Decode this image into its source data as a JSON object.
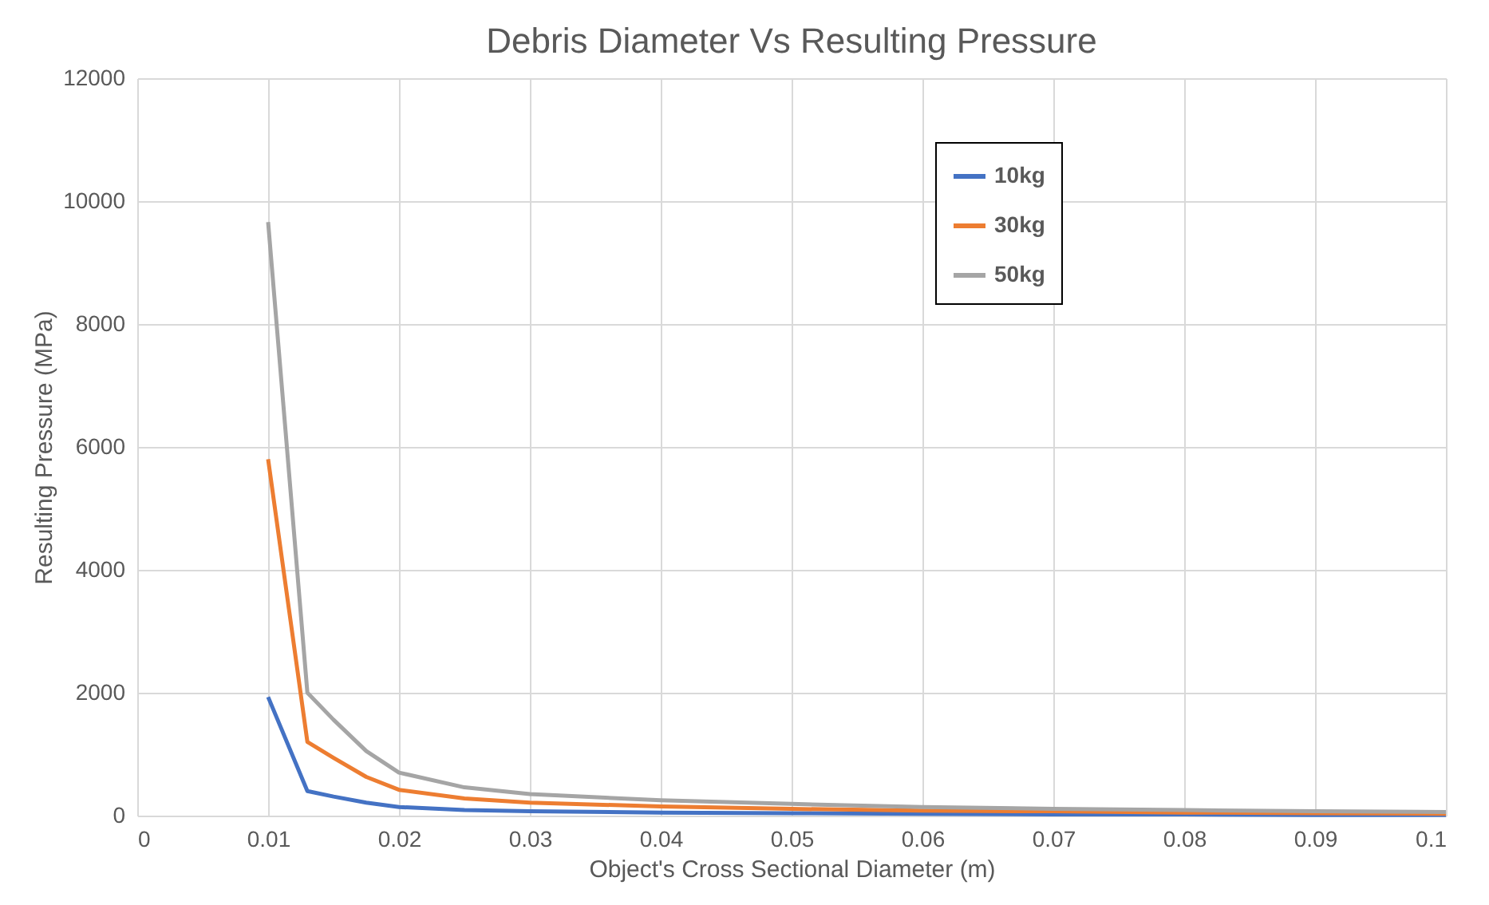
{
  "chart_data": {
    "type": "line",
    "title": "Debris Diameter Vs Resulting Pressure",
    "xlabel": "Object's Cross Sectional Diameter (m)",
    "ylabel": "Resulting Pressure (MPa)",
    "x": [
      0.01,
      0.013,
      0.015,
      0.0175,
      0.02,
      0.025,
      0.03,
      0.04,
      0.05,
      0.06,
      0.07,
      0.08,
      0.09,
      0.1
    ],
    "series": [
      {
        "name": "10kg",
        "color": "#4472c4",
        "values": [
          1930,
          400,
          310,
          210,
          140,
          90,
          70,
          50,
          40,
          30,
          20,
          20,
          10,
          10
        ]
      },
      {
        "name": "30kg",
        "color": "#ed7d31",
        "values": [
          5800,
          1200,
          940,
          630,
          420,
          280,
          210,
          150,
          110,
          80,
          70,
          50,
          40,
          30
        ]
      },
      {
        "name": "50kg",
        "color": "#a5a5a5",
        "values": [
          9660,
          2000,
          1560,
          1050,
          700,
          460,
          350,
          250,
          190,
          140,
          110,
          90,
          70,
          60
        ]
      }
    ],
    "xlim": [
      0,
      0.1
    ],
    "xticks": [
      0,
      0.01,
      0.02,
      0.03,
      0.04,
      0.05,
      0.06,
      0.07,
      0.08,
      0.09,
      0.1
    ],
    "ylim": [
      0,
      12000
    ],
    "yticks": [
      0,
      2000,
      4000,
      6000,
      8000,
      10000,
      12000
    ],
    "grid": true,
    "legend": "top right",
    "marker": "none",
    "line_style": "solid"
  }
}
